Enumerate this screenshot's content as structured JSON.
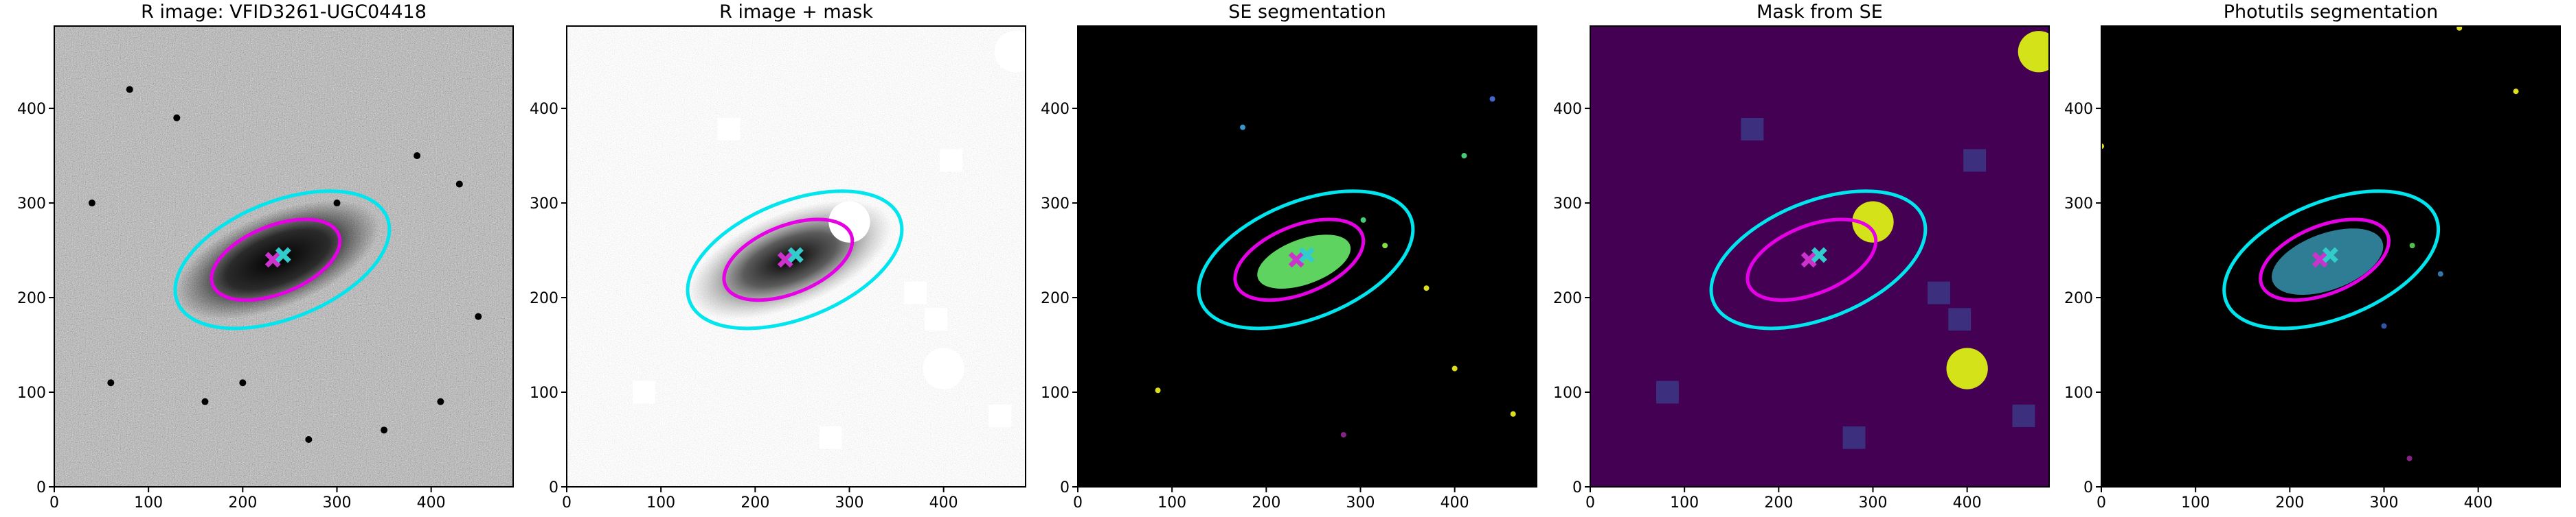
{
  "chart_data": [
    {
      "type": "image",
      "title": "R image: VFID3261-UGC04418",
      "xlim": [
        0,
        487
      ],
      "ylim": [
        0,
        487
      ],
      "xticks": [
        0,
        100,
        200,
        300,
        400
      ],
      "yticks": [
        0,
        100,
        200,
        300,
        400
      ],
      "ellipses": [
        {
          "x": 242,
          "y": 240,
          "a": 120,
          "b": 62,
          "angle": 22,
          "color": "#00e5ee"
        },
        {
          "x": 235,
          "y": 240,
          "a": 72,
          "b": 36,
          "angle": 22,
          "color": "#e600e6"
        }
      ],
      "markers": [
        {
          "x": 232,
          "y": 240,
          "color": "#cc33cc"
        },
        {
          "x": 243,
          "y": 245,
          "color": "#33cccc"
        }
      ]
    },
    {
      "type": "image",
      "title": "R image + mask",
      "xlim": [
        0,
        487
      ],
      "ylim": [
        0,
        487
      ],
      "xticks": [
        0,
        100,
        200,
        300,
        400
      ],
      "yticks": [
        0,
        100,
        200,
        300,
        400
      ],
      "ellipses": [
        {
          "x": 242,
          "y": 240,
          "a": 120,
          "b": 62,
          "angle": 22,
          "color": "#00e5ee"
        },
        {
          "x": 235,
          "y": 240,
          "a": 72,
          "b": 36,
          "angle": 22,
          "color": "#e600e6"
        }
      ],
      "markers": [
        {
          "x": 232,
          "y": 240,
          "color": "#cc33cc"
        },
        {
          "x": 243,
          "y": 245,
          "color": "#33cccc"
        }
      ]
    },
    {
      "type": "image",
      "title": "SE segmentation",
      "xlim": [
        0,
        487
      ],
      "ylim": [
        0,
        487
      ],
      "xticks": [
        0,
        100,
        200,
        300,
        400
      ],
      "yticks": [
        0,
        100,
        200,
        300,
        400
      ],
      "ellipses": [
        {
          "x": 242,
          "y": 240,
          "a": 120,
          "b": 62,
          "angle": 22,
          "color": "#00e5ee"
        },
        {
          "x": 235,
          "y": 240,
          "a": 72,
          "b": 36,
          "angle": 22,
          "color": "#e600e6"
        }
      ],
      "markers": [
        {
          "x": 232,
          "y": 240,
          "color": "#cc33cc"
        },
        {
          "x": 243,
          "y": 245,
          "color": "#33cccc"
        }
      ]
    },
    {
      "type": "image",
      "title": "Mask from SE",
      "xlim": [
        0,
        487
      ],
      "ylim": [
        0,
        487
      ],
      "xticks": [
        0,
        100,
        200,
        300,
        400
      ],
      "yticks": [
        0,
        100,
        200,
        300,
        400
      ],
      "ellipses": [
        {
          "x": 242,
          "y": 240,
          "a": 120,
          "b": 62,
          "angle": 22,
          "color": "#00e5ee"
        },
        {
          "x": 235,
          "y": 240,
          "a": 72,
          "b": 36,
          "angle": 22,
          "color": "#e600e6"
        }
      ],
      "markers": [
        {
          "x": 232,
          "y": 240,
          "color": "#cc33cc"
        },
        {
          "x": 243,
          "y": 245,
          "color": "#33cccc"
        }
      ]
    },
    {
      "type": "image",
      "title": "Photutils segmentation",
      "xlim": [
        0,
        487
      ],
      "ylim": [
        0,
        487
      ],
      "xticks": [
        0,
        100,
        200,
        300,
        400
      ],
      "yticks": [
        0,
        100,
        200,
        300,
        400
      ],
      "ellipses": [
        {
          "x": 244,
          "y": 240,
          "a": 120,
          "b": 62,
          "angle": 22,
          "color": "#00e5ee"
        },
        {
          "x": 237,
          "y": 240,
          "a": 72,
          "b": 36,
          "angle": 22,
          "color": "#e600e6"
        }
      ],
      "markers": [
        {
          "x": 232,
          "y": 240,
          "color": "#cc33cc"
        },
        {
          "x": 243,
          "y": 245,
          "color": "#33cccc"
        }
      ]
    }
  ]
}
